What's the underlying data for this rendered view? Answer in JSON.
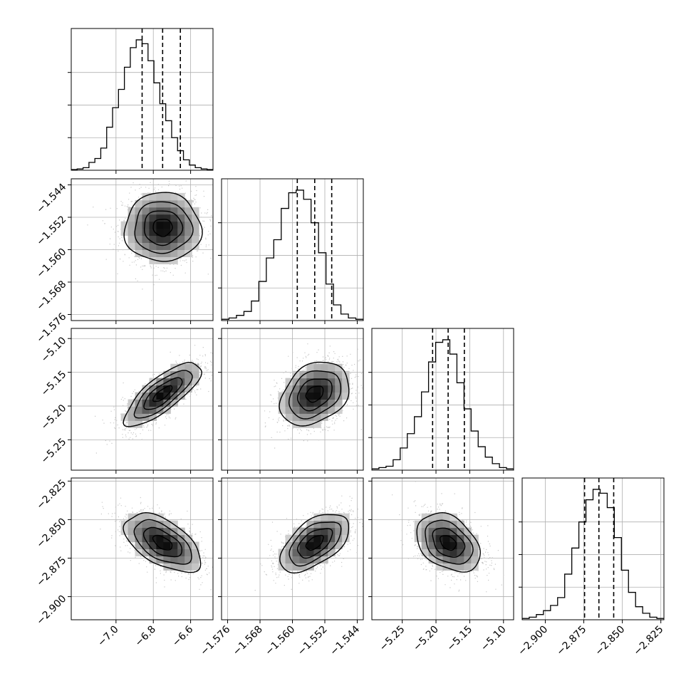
{
  "chart_data": {
    "type": "corner",
    "grid": true,
    "parameters": [
      {
        "index": 0,
        "range": [
          -7.24,
          -6.48
        ],
        "median": -6.75,
        "quantiles": [
          -6.86,
          -6.75,
          -6.655
        ],
        "ticks": [
          -7.0,
          -6.8,
          -6.6
        ],
        "tick_labels": [
          "−7.0",
          "−6.8",
          "−6.6"
        ],
        "hist": [
          0.005,
          0.01,
          0.02,
          0.06,
          0.09,
          0.17,
          0.33,
          0.48,
          0.62,
          0.79,
          0.94,
          1.0,
          0.97,
          0.84,
          0.67,
          0.51,
          0.38,
          0.25,
          0.15,
          0.08,
          0.04,
          0.02,
          0.01,
          0.005
        ]
      },
      {
        "index": 1,
        "range": [
          -1.5775,
          -1.5425
        ],
        "median": -1.5545,
        "quantiles": [
          -1.5588,
          -1.5545,
          -1.5503
        ],
        "ticks": [
          -1.576,
          -1.568,
          -1.56,
          -1.552,
          -1.544
        ],
        "tick_labels": [
          "−1.576",
          "−1.568",
          "−1.560",
          "−1.552",
          "−1.544"
        ],
        "hist": [
          0.01,
          0.02,
          0.04,
          0.07,
          0.15,
          0.3,
          0.48,
          0.62,
          0.86,
          0.98,
          1.0,
          0.93,
          0.75,
          0.52,
          0.28,
          0.12,
          0.05,
          0.02,
          0.01
        ]
      },
      {
        "index": 2,
        "range": [
          -5.295,
          -5.085
        ],
        "median": -5.182,
        "quantiles": [
          -5.205,
          -5.182,
          -5.158
        ],
        "ticks": [
          -5.25,
          -5.2,
          -5.15,
          -5.1
        ],
        "tick_labels": [
          "−5.25",
          "−5.20",
          "−5.15",
          "−5.10"
        ],
        "hist": [
          0.01,
          0.02,
          0.03,
          0.08,
          0.17,
          0.28,
          0.41,
          0.6,
          0.83,
          0.98,
          1.0,
          0.89,
          0.67,
          0.47,
          0.3,
          0.18,
          0.1,
          0.05,
          0.02,
          0.01
        ]
      },
      {
        "index": 3,
        "range": [
          -2.915,
          -2.823
        ],
        "median": -2.865,
        "quantiles": [
          -2.8745,
          -2.8652,
          -2.8556
        ],
        "ticks": [
          -2.9,
          -2.875,
          -2.85,
          -2.825
        ],
        "tick_labels": [
          "−2.900",
          "−2.875",
          "−2.850",
          "−2.825"
        ],
        "hist": [
          0.01,
          0.02,
          0.04,
          0.07,
          0.11,
          0.17,
          0.35,
          0.55,
          0.75,
          0.92,
          1.0,
          0.97,
          0.86,
          0.63,
          0.38,
          0.21,
          0.1,
          0.05,
          0.02,
          0.01
        ]
      }
    ],
    "correlations": {
      "1_0": 0.0,
      "2_0": 0.78,
      "2_1": 0.3,
      "3_0": -0.55,
      "3_1": 0.55,
      "3_2": -0.35
    },
    "contour_levels_sigma": [
      0.5,
      1.0,
      1.5,
      2.0
    ]
  }
}
